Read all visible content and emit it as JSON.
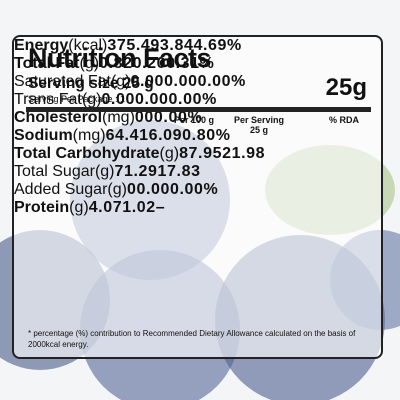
{
  "header": {
    "title": "Nutrition Facts",
    "serving_size": "Serving size 25 g",
    "servings_per_package": "Serving Per Package : 1",
    "serving_weight": "25g"
  },
  "table": {
    "columns": [
      "Per 100 g",
      "Per Serving",
      "25 g",
      "% RDA"
    ],
    "rows": [
      {
        "label": "Energy",
        "unit": "(kcal)",
        "bold": true,
        "values": [
          "375.4",
          "93.84",
          "4.69%"
        ]
      },
      {
        "label": "Total Fat",
        "unit": "(g)",
        "bold": true,
        "values": [
          "0.82",
          "0.20",
          "0.31%"
        ]
      },
      {
        "label": "Saturated Fat",
        "unit": "(g)",
        "bold": false,
        "values": [
          "0.00",
          "0.00",
          "0.00%"
        ]
      },
      {
        "label": "Trans Fat",
        "unit": "(g)",
        "bold": false,
        "values": [
          "0.00",
          "0.00",
          "0.00%"
        ]
      },
      {
        "label": "Cholesterol",
        "unit": "(mg)",
        "bold": true,
        "values": [
          "0",
          "0",
          "0.00%"
        ]
      },
      {
        "label": "Sodium",
        "unit": "(mg)",
        "bold": true,
        "values": [
          "64.4",
          "16.09",
          "0.80%"
        ]
      },
      {
        "label": "Total Carbohydrate",
        "unit": "(g)",
        "bold": true,
        "values": [
          "87.95",
          "21.98",
          null
        ]
      },
      {
        "label": "Total Sugar",
        "unit": "(g)",
        "bold": false,
        "values": [
          "71.29",
          "17.83",
          null
        ]
      },
      {
        "label": "Added Sugar",
        "unit": "(g)",
        "bold": false,
        "values": [
          "0",
          "0.00",
          "0.00%"
        ]
      },
      {
        "label": "Protein",
        "unit": "(g)",
        "bold": true,
        "values": [
          "4.07",
          "1.02",
          "–"
        ]
      }
    ]
  },
  "footnote": "* percentage (%) contribution to Recommended Dietary Allowance calculated on the basis of 2000kcal energy."
}
